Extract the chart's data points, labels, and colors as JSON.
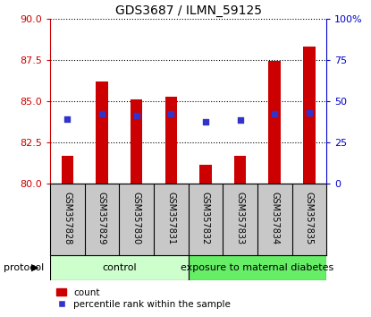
{
  "title": "GDS3687 / ILMN_59125",
  "samples": [
    "GSM357828",
    "GSM357829",
    "GSM357830",
    "GSM357831",
    "GSM357832",
    "GSM357833",
    "GSM357834",
    "GSM357835"
  ],
  "bar_bottom": 80,
  "bar_tops": [
    81.7,
    86.2,
    85.1,
    85.3,
    81.15,
    81.7,
    87.45,
    88.35
  ],
  "percentile_values": [
    83.95,
    84.25,
    84.15,
    84.25,
    83.75,
    83.85,
    84.25,
    84.3
  ],
  "ylim_left": [
    80,
    90
  ],
  "ylim_right": [
    0,
    100
  ],
  "yticks_left": [
    80,
    82.5,
    85,
    87.5,
    90
  ],
  "yticks_right": [
    0,
    25,
    50,
    75,
    100
  ],
  "bar_color": "#cc0000",
  "percentile_color": "#3333cc",
  "group_labels": [
    "control",
    "exposure to maternal diabetes"
  ],
  "group_colors": [
    "#ccffcc",
    "#66ee66"
  ],
  "protocol_label": "protocol",
  "legend_count_label": "count",
  "legend_percentile_label": "percentile rank within the sample",
  "left_tick_color": "#cc0000",
  "right_tick_color": "#0000cc",
  "tick_area_bg": "#c8c8c8",
  "bar_width": 0.35
}
